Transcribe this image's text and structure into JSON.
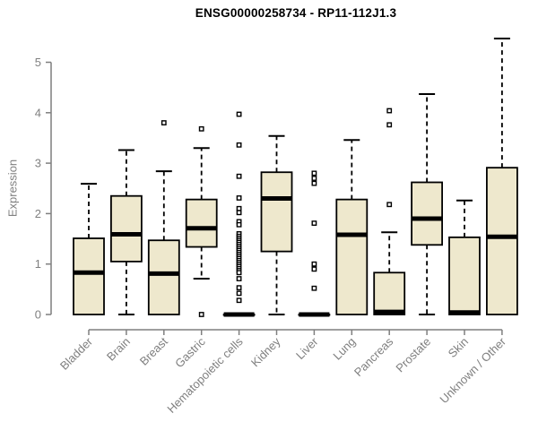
{
  "chart_data": {
    "type": "boxplot",
    "title": "ENSG00000258734 - RP11-112J1.3",
    "ylabel": "Expression",
    "xlabel": "",
    "ylim": [
      0,
      5.5
    ],
    "yticks": [
      0,
      1,
      2,
      3,
      4,
      5
    ],
    "layout": {
      "grid": false,
      "legend": false,
      "x_labels_rotated_degrees": 45
    },
    "categories": [
      "Bladder",
      "Brain",
      "Breast",
      "Gastric",
      "Hematopoietic cells",
      "Kidney",
      "Liver",
      "Lung",
      "Pancreas",
      "Prostate",
      "Skin",
      "Unknown / Other"
    ],
    "series": [
      {
        "name": "Bladder",
        "low": 0,
        "q1": 0,
        "median": 0.83,
        "q3": 1.51,
        "high": 2.59,
        "outliers": []
      },
      {
        "name": "Brain",
        "low": 0,
        "q1": 1.05,
        "median": 1.59,
        "q3": 2.35,
        "high": 3.26,
        "outliers": []
      },
      {
        "name": "Breast",
        "low": 0,
        "q1": 0,
        "median": 0.81,
        "q3": 1.47,
        "high": 2.84,
        "outliers": [
          3.8
        ]
      },
      {
        "name": "Gastric",
        "low": 0.71,
        "q1": 1.34,
        "median": 1.71,
        "q3": 2.28,
        "high": 3.3,
        "outliers": [
          3.68,
          0
        ]
      },
      {
        "name": "Hematopoietic cells",
        "low": 0,
        "q1": 0,
        "median": 0,
        "q3": 0,
        "high": 0,
        "outliers": [
          3.97,
          3.36,
          2.74,
          2.31,
          2.1,
          2.02,
          1.84,
          1.78,
          1.6,
          1.55,
          1.51,
          1.47,
          1.43,
          1.39,
          1.35,
          1.31,
          1.27,
          1.23,
          1.19,
          1.15,
          1.11,
          1.07,
          1.03,
          0.99,
          0.95,
          0.91,
          0.87,
          0.83,
          0.71,
          0.53,
          0.42,
          0.28
        ]
      },
      {
        "name": "Kidney",
        "low": 0,
        "q1": 1.25,
        "median": 2.3,
        "q3": 2.82,
        "high": 3.54,
        "outliers": []
      },
      {
        "name": "Liver",
        "low": 0,
        "q1": 0,
        "median": 0,
        "q3": 0,
        "high": 0,
        "outliers": [
          2.8,
          2.7,
          2.6,
          1.81,
          1.0,
          0.9,
          0.52
        ]
      },
      {
        "name": "Lung",
        "low": 0,
        "q1": 0,
        "median": 1.58,
        "q3": 2.28,
        "high": 3.46,
        "outliers": []
      },
      {
        "name": "Pancreas",
        "low": 0,
        "q1": 0,
        "median": 0.05,
        "q3": 0.83,
        "high": 1.63,
        "outliers": [
          4.04,
          3.76,
          2.18
        ]
      },
      {
        "name": "Prostate",
        "low": 0,
        "q1": 1.38,
        "median": 1.9,
        "q3": 2.62,
        "high": 4.37,
        "outliers": []
      },
      {
        "name": "Skin",
        "low": 0,
        "q1": 0,
        "median": 0.04,
        "q3": 1.53,
        "high": 2.26,
        "outliers": []
      },
      {
        "name": "Unknown / Other",
        "low": 0,
        "q1": 0,
        "median": 1.54,
        "q3": 2.91,
        "high": 5.47,
        "outliers": []
      }
    ],
    "colors": {
      "box_fill": "#EEE8CD",
      "box_stroke": "#000000",
      "median": "#000000",
      "whisker": "#000000",
      "outlier_stroke": "#000000",
      "outlier_fill": "#FFFFFF",
      "axis": "#7F7F7F",
      "tick_text": "#7F7F7F",
      "title_text": "#000000",
      "background": "#FFFFFF"
    }
  }
}
